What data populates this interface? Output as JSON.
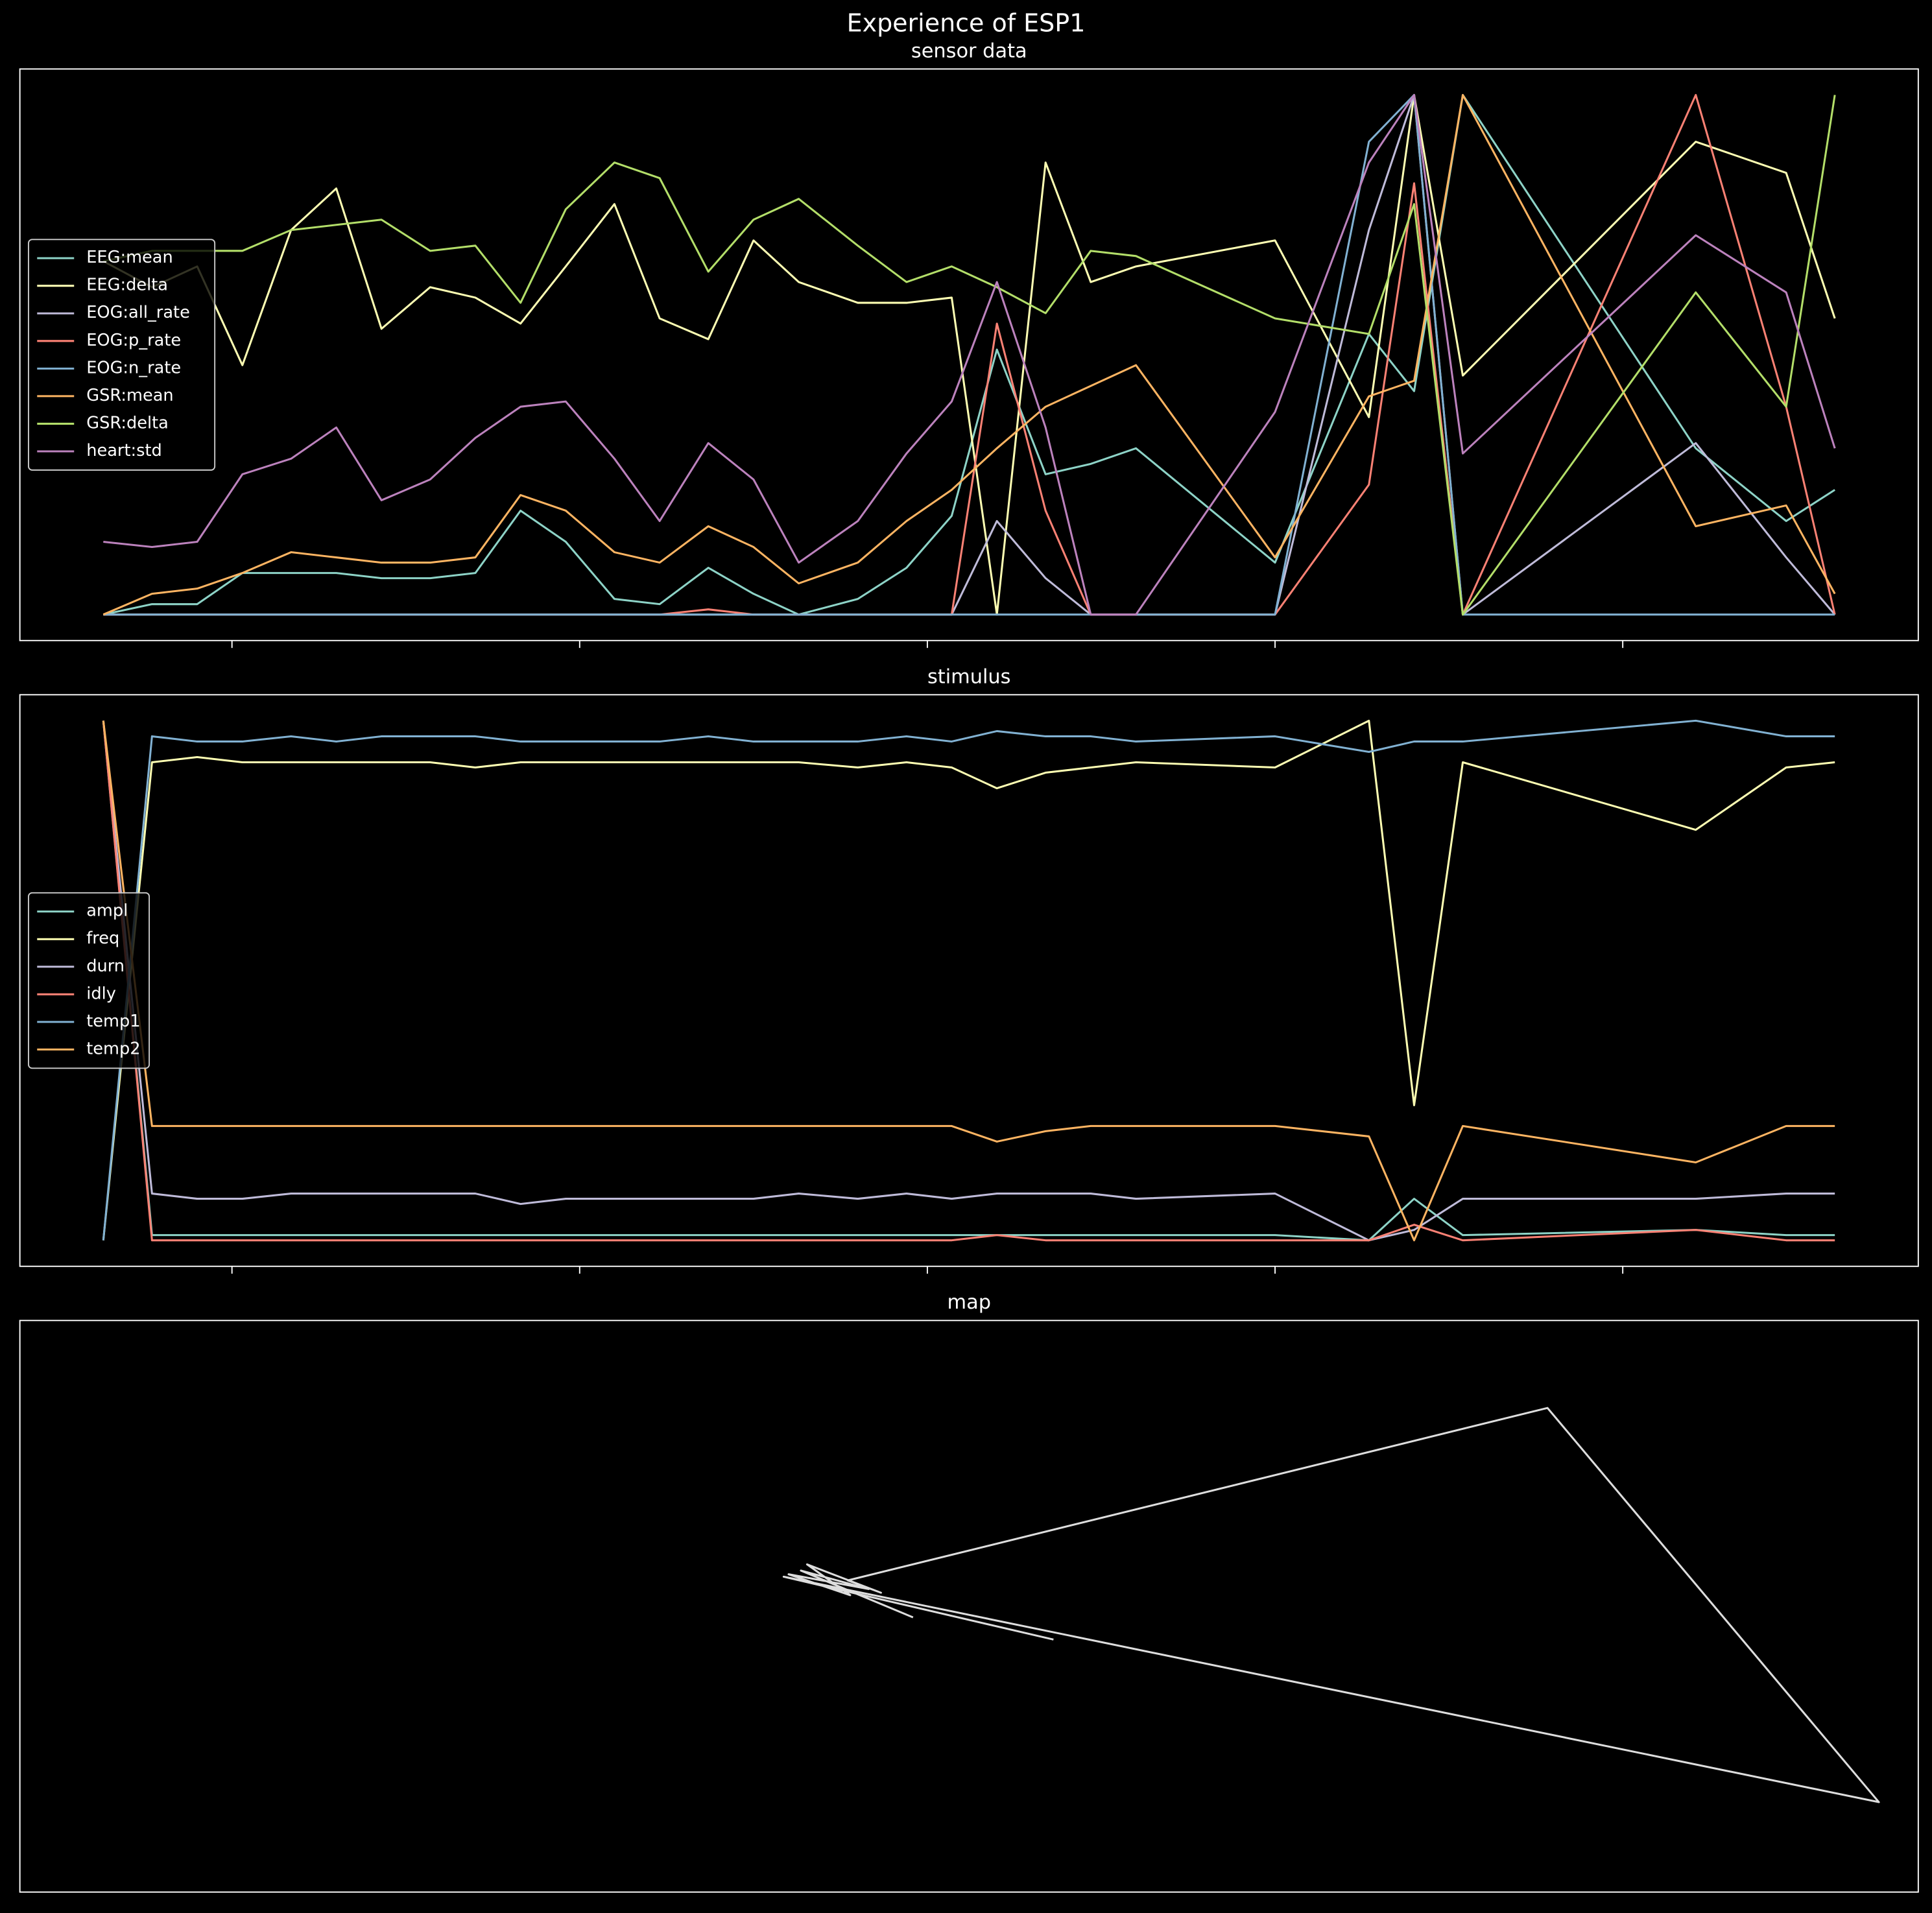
{
  "title": "Experience of ESP1",
  "chart_data": [
    {
      "type": "line",
      "title": "sensor data",
      "legend": "center left",
      "x": [
        -0.37,
        -0.23,
        -0.1,
        0.03,
        0.17,
        0.3,
        0.43,
        0.57,
        0.7,
        0.83,
        0.96,
        1.1,
        1.23,
        1.37,
        1.5,
        1.63,
        1.8,
        1.94,
        2.07,
        2.2,
        2.34,
        2.47,
        2.6,
        3.0,
        3.27,
        3.4,
        3.54,
        4.21,
        4.47,
        4.61
      ],
      "xlim": [
        -0.61,
        4.85
      ],
      "xticks": [
        0,
        1,
        2,
        3,
        4
      ],
      "ylim": [
        -0.05,
        1.05
      ],
      "series": [
        {
          "name": "EEG:mean",
          "color": "#8dd3c7",
          "values": [
            0,
            0.02,
            0.02,
            0.08,
            0.08,
            0.08,
            0.07,
            0.07,
            0.08,
            0.2,
            0.14,
            0.03,
            0.02,
            0.09,
            0.04,
            0,
            0.03,
            0.09,
            0.19,
            0.51,
            0.27,
            0.29,
            0.32,
            0.1,
            0.54,
            0.43,
            1,
            0.32,
            0.18,
            0.24
          ]
        },
        {
          "name": "EEG:delta",
          "color": "#feffb3",
          "values": [
            0.68,
            0.63,
            0.67,
            0.48,
            0.74,
            0.82,
            0.55,
            0.63,
            0.61,
            0.56,
            0.67,
            0.79,
            0.57,
            0.53,
            0.72,
            0.64,
            0.6,
            0.6,
            0.61,
            0,
            0.87,
            0.64,
            0.67,
            0.72,
            0.38,
            1,
            0.46,
            0.91,
            0.85,
            0.57
          ]
        },
        {
          "name": "EOG:all_rate",
          "color": "#bfbbd9",
          "values": [
            0,
            0,
            0,
            0,
            0,
            0,
            0,
            0,
            0,
            0,
            0,
            0,
            0,
            0,
            0,
            0,
            0,
            0,
            0,
            0.18,
            0.07,
            0,
            0,
            0,
            0.74,
            1,
            0,
            0.33,
            0.11,
            0
          ]
        },
        {
          "name": "EOG:p_rate",
          "color": "#fa8174",
          "values": [
            0,
            0,
            0,
            0,
            0,
            0,
            0,
            0,
            0,
            0,
            0,
            0,
            0,
            0.01,
            0,
            0,
            0,
            0,
            0,
            0.56,
            0.2,
            0,
            0,
            0,
            0.25,
            0.83,
            0,
            1,
            0.4,
            0
          ]
        },
        {
          "name": "EOG:n_rate",
          "color": "#81b1d2",
          "values": [
            0,
            0,
            0,
            0,
            0,
            0,
            0,
            0,
            0,
            0,
            0,
            0,
            0,
            0,
            0,
            0,
            0,
            0,
            0,
            0,
            0,
            0,
            0,
            0,
            0.91,
            1,
            0,
            0,
            0,
            0
          ]
        },
        {
          "name": "GSR:mean",
          "color": "#fdb462",
          "values": [
            0,
            0.04,
            0.05,
            0.08,
            0.12,
            0.11,
            0.1,
            0.1,
            0.11,
            0.23,
            0.2,
            0.12,
            0.1,
            0.17,
            0.13,
            0.06,
            0.1,
            0.18,
            0.24,
            0.32,
            0.4,
            0.44,
            0.48,
            0.11,
            0.42,
            0.45,
            1,
            0.17,
            0.21,
            0.04
          ]
        },
        {
          "name": "GSR:delta",
          "color": "#b3de69",
          "values": [
            0.68,
            0.7,
            0.7,
            0.7,
            0.74,
            0.75,
            0.76,
            0.7,
            0.71,
            0.6,
            0.78,
            0.87,
            0.84,
            0.66,
            0.76,
            0.8,
            0.71,
            0.64,
            0.67,
            0.63,
            0.58,
            0.7,
            0.69,
            0.57,
            0.54,
            0.79,
            0,
            0.62,
            0.4,
            1
          ]
        },
        {
          "name": "heart:std",
          "color": "#bc82bd",
          "values": [
            0.14,
            0.13,
            0.14,
            0.27,
            0.3,
            0.36,
            0.22,
            0.26,
            0.34,
            0.4,
            0.41,
            0.3,
            0.18,
            0.33,
            0.26,
            0.1,
            0.18,
            0.31,
            0.41,
            0.64,
            0.36,
            0,
            0,
            0.39,
            0.87,
            1,
            0.31,
            0.73,
            0.62,
            0.32
          ]
        }
      ]
    },
    {
      "type": "line",
      "title": "stimulus",
      "legend": "center left",
      "x": [
        -0.37,
        -0.23,
        -0.1,
        0.03,
        0.17,
        0.3,
        0.43,
        0.57,
        0.7,
        0.83,
        0.96,
        1.1,
        1.23,
        1.37,
        1.5,
        1.63,
        1.8,
        1.94,
        2.07,
        2.2,
        2.34,
        2.47,
        2.6,
        3.0,
        3.27,
        3.4,
        3.54,
        4.21,
        4.47,
        4.61
      ],
      "xlim": [
        -0.61,
        4.85
      ],
      "xticks": [
        0,
        1,
        2,
        3,
        4
      ],
      "ylim": [
        -0.05,
        1.05
      ],
      "series": [
        {
          "name": "ampl",
          "color": "#8dd3c7",
          "values": [
            1,
            0.01,
            0.01,
            0.01,
            0.01,
            0.01,
            0.01,
            0.01,
            0.01,
            0.01,
            0.01,
            0.01,
            0.01,
            0.01,
            0.01,
            0.01,
            0.01,
            0.01,
            0.01,
            0.01,
            0.01,
            0.01,
            0.01,
            0.01,
            0,
            0.08,
            0.01,
            0.02,
            0.01,
            0.01
          ]
        },
        {
          "name": "freq",
          "color": "#feffb3",
          "values": [
            0,
            0.92,
            0.93,
            0.92,
            0.92,
            0.92,
            0.92,
            0.92,
            0.91,
            0.92,
            0.92,
            0.92,
            0.92,
            0.92,
            0.92,
            0.92,
            0.91,
            0.92,
            0.91,
            0.87,
            0.9,
            0.91,
            0.92,
            0.91,
            1,
            0.26,
            0.92,
            0.79,
            0.91,
            0.92
          ]
        },
        {
          "name": "durn",
          "color": "#bfbbd9",
          "values": [
            1,
            0.09,
            0.08,
            0.08,
            0.09,
            0.09,
            0.09,
            0.09,
            0.09,
            0.07,
            0.08,
            0.08,
            0.08,
            0.08,
            0.08,
            0.09,
            0.08,
            0.09,
            0.08,
            0.09,
            0.09,
            0.09,
            0.08,
            0.09,
            0,
            0.02,
            0.08,
            0.08,
            0.09,
            0.09
          ]
        },
        {
          "name": "idly",
          "color": "#fa8174",
          "values": [
            1,
            0,
            0,
            0,
            0,
            0,
            0,
            0,
            0,
            0,
            0,
            0,
            0,
            0,
            0,
            0,
            0,
            0,
            0,
            0.01,
            0,
            0,
            0,
            0,
            0,
            0.03,
            0,
            0.02,
            0,
            0
          ]
        },
        {
          "name": "temp1",
          "color": "#81b1d2",
          "values": [
            0,
            0.97,
            0.96,
            0.96,
            0.97,
            0.96,
            0.97,
            0.97,
            0.97,
            0.96,
            0.96,
            0.96,
            0.96,
            0.97,
            0.96,
            0.96,
            0.96,
            0.97,
            0.96,
            0.98,
            0.97,
            0.97,
            0.96,
            0.97,
            0.94,
            0.96,
            0.96,
            1,
            0.97,
            0.97
          ]
        },
        {
          "name": "temp2",
          "color": "#fdb462",
          "values": [
            1,
            0.22,
            0.22,
            0.22,
            0.22,
            0.22,
            0.22,
            0.22,
            0.22,
            0.22,
            0.22,
            0.22,
            0.22,
            0.22,
            0.22,
            0.22,
            0.22,
            0.22,
            0.22,
            0.19,
            0.21,
            0.22,
            0.22,
            0.22,
            0.2,
            0,
            0.22,
            0.15,
            0.22,
            0.22
          ]
        }
      ]
    },
    {
      "type": "line",
      "title": "map",
      "color": "#dddddd",
      "x": [
        7.41,
        6.5,
        7.05,
        6.4,
        6.9,
        6.55,
        7.15,
        6.88,
        12.56,
        15.25,
        6.36,
        8.55
      ],
      "values": [
        2.23,
        2.61,
        2.46,
        2.58,
        2.41,
        2.66,
        2.43,
        2.53,
        3.93,
        0.73,
        2.56,
        2.05
      ],
      "xlim": [
        0.16,
        15.57
      ],
      "ylim": [
        0,
        4.64
      ]
    }
  ]
}
